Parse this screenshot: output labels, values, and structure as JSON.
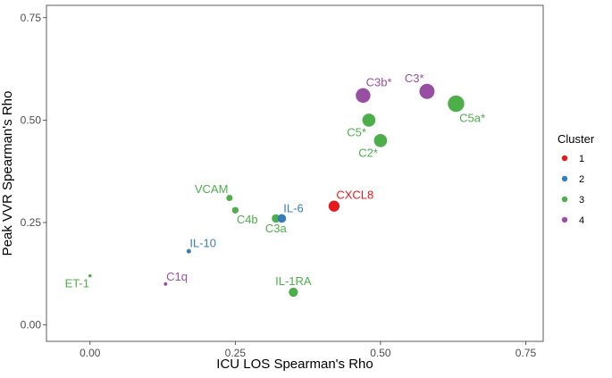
{
  "chart_data": {
    "type": "scatter",
    "xlabel": "ICU LOS Spearman's Rho",
    "ylabel": "Peak VVR Spearman's Rho",
    "xlim": [
      -0.075,
      0.78
    ],
    "ylim": [
      -0.04,
      0.78
    ],
    "x_ticks": [
      0.0,
      0.25,
      0.5,
      0.75
    ],
    "x_tick_labels": [
      "0.00",
      "0.25",
      "0.50",
      "0.75"
    ],
    "y_ticks": [
      0.0,
      0.25,
      0.5,
      0.75
    ],
    "y_tick_labels": [
      "0.00",
      "0.25",
      "0.50",
      "0.75"
    ],
    "grid": false,
    "legend": {
      "title": "Cluster",
      "placement": "right",
      "entries": [
        {
          "label": "1",
          "color": "#E41A1C"
        },
        {
          "label": "2",
          "color": "#377EB8"
        },
        {
          "label": "3",
          "color": "#4DAF4A"
        },
        {
          "label": "4",
          "color": "#984EA3"
        }
      ]
    },
    "points": [
      {
        "label": "ET-1",
        "x": 0.0,
        "y": 0.12,
        "cluster": "3",
        "size_rho": 0.12,
        "label_pos": "below-left"
      },
      {
        "label": "C1q",
        "x": 0.13,
        "y": 0.1,
        "cluster": "4",
        "size_rho": 0.13,
        "label_pos": "above-right"
      },
      {
        "label": "IL-10",
        "x": 0.17,
        "y": 0.18,
        "cluster": "2",
        "size_rho": 0.17,
        "label_pos": "above-right"
      },
      {
        "label": "VCAM",
        "x": 0.24,
        "y": 0.31,
        "cluster": "3",
        "size_rho": 0.24,
        "label_pos": "above-left"
      },
      {
        "label": "C4b",
        "x": 0.25,
        "y": 0.28,
        "cluster": "3",
        "size_rho": 0.25,
        "label_pos": "below-right"
      },
      {
        "label": "C3a",
        "x": 0.32,
        "y": 0.26,
        "cluster": "3",
        "size_rho": 0.32,
        "label_pos": "below"
      },
      {
        "label": "IL-6",
        "x": 0.33,
        "y": 0.26,
        "cluster": "2",
        "size_rho": 0.33,
        "label_pos": "above-right"
      },
      {
        "label": "IL-1RA",
        "x": 0.35,
        "y": 0.08,
        "cluster": "3",
        "size_rho": 0.35,
        "label_pos": "above"
      },
      {
        "label": "CXCL8",
        "x": 0.42,
        "y": 0.29,
        "cluster": "1",
        "size_rho": 0.42,
        "label_pos": "above-right"
      },
      {
        "label": "C3b*",
        "x": 0.47,
        "y": 0.56,
        "cluster": "4",
        "size_rho": 0.56,
        "label_pos": "above-right"
      },
      {
        "label": "C5*",
        "x": 0.48,
        "y": 0.5,
        "cluster": "3",
        "size_rho": 0.5,
        "label_pos": "below-left"
      },
      {
        "label": "C2*",
        "x": 0.5,
        "y": 0.45,
        "cluster": "3",
        "size_rho": 0.5,
        "label_pos": "below-left"
      },
      {
        "label": "C3*",
        "x": 0.58,
        "y": 0.57,
        "cluster": "4",
        "size_rho": 0.58,
        "label_pos": "above-left"
      },
      {
        "label": "C5a*",
        "x": 0.63,
        "y": 0.54,
        "cluster": "3",
        "size_rho": 0.63,
        "label_pos": "below-right"
      }
    ]
  }
}
